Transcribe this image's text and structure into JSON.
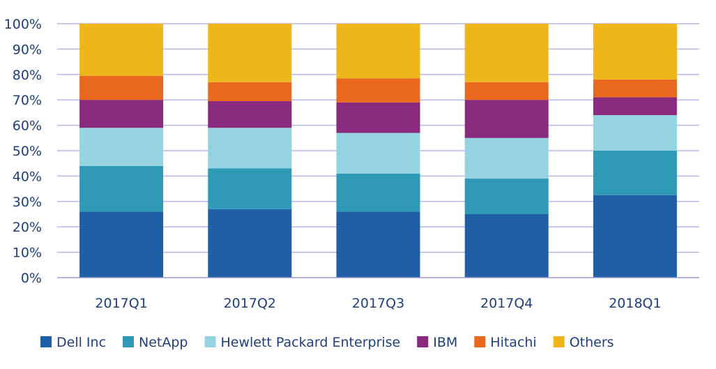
{
  "chart_data": {
    "type": "bar",
    "stacked": true,
    "categories": [
      "2017Q1",
      "2017Q2",
      "2017Q3",
      "2017Q4",
      "2018Q1"
    ],
    "series": [
      {
        "name": "Dell Inc",
        "color": "#1f5fa6",
        "values": [
          26,
          27,
          26,
          25,
          32.5
        ]
      },
      {
        "name": "NetApp",
        "color": "#2e9ab5",
        "values": [
          18,
          16,
          15,
          14,
          17.5
        ]
      },
      {
        "name": "Hewlett Packard Enterprise",
        "color": "#94d3e0",
        "values": [
          15,
          16,
          16,
          16,
          14
        ]
      },
      {
        "name": "IBM",
        "color": "#8a2a7e",
        "values": [
          11,
          10.5,
          12,
          15,
          7
        ]
      },
      {
        "name": "Hitachi",
        "color": "#e8681e",
        "values": [
          9.5,
          7.5,
          9.5,
          7,
          7
        ]
      },
      {
        "name": "Others",
        "color": "#efb61c",
        "values": [
          20.5,
          23,
          21.5,
          23,
          22
        ]
      }
    ],
    "yticks": [
      "0%",
      "10%",
      "20%",
      "30%",
      "40%",
      "50%",
      "60%",
      "70%",
      "80%",
      "90%",
      "100%"
    ],
    "ylim": [
      0,
      100
    ],
    "grid": true,
    "legend_position": "bottom",
    "title": "",
    "xlabel": "",
    "ylabel": ""
  }
}
